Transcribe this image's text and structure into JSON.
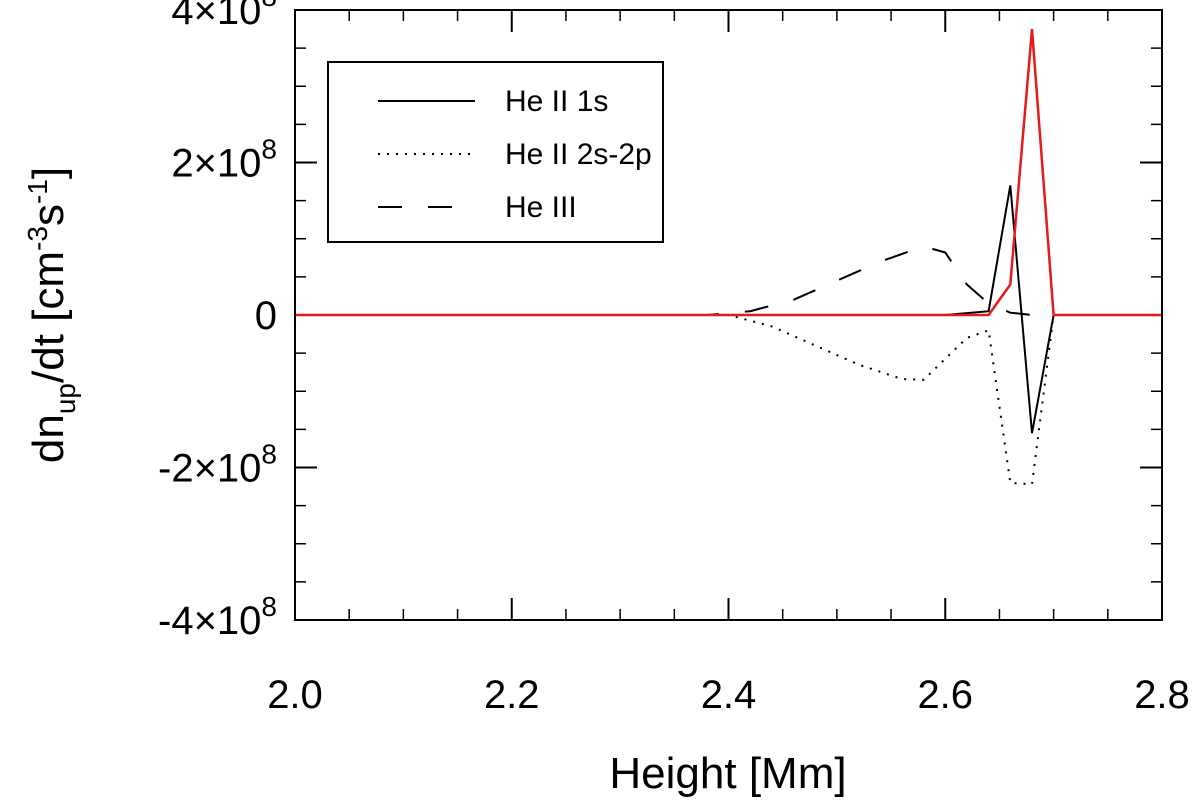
{
  "chart_data": {
    "type": "line",
    "title": "",
    "xlabel": "Height [Mm]",
    "ylabel": {
      "main": "dn",
      "sub": "up",
      "mid": "/dt [cm",
      "sup1": "-3",
      "mid2": "s",
      "sup2": "-1",
      "end": "]"
    },
    "xlim": [
      2.0,
      2.8
    ],
    "ylim": [
      -400000000,
      400000000
    ],
    "x_ticks": [
      {
        "value": 2.0,
        "label": "2.0"
      },
      {
        "value": 2.2,
        "label": "2.2"
      },
      {
        "value": 2.4,
        "label": "2.4"
      },
      {
        "value": 2.6,
        "label": "2.6"
      },
      {
        "value": 2.8,
        "label": "2.8"
      }
    ],
    "y_ticks": [
      {
        "value": 400000000,
        "base": "4×10",
        "exp": "8"
      },
      {
        "value": 200000000,
        "base": "2×10",
        "exp": "8"
      },
      {
        "value": 0,
        "base": "0",
        "exp": ""
      },
      {
        "value": -200000000,
        "base": "-2×10",
        "exp": "8"
      },
      {
        "value": -400000000,
        "base": "-4×10",
        "exp": "8"
      }
    ],
    "x_minor_step": 0.05,
    "y_minor_step": 50000000,
    "legend_position": "top-left",
    "series": [
      {
        "name": "He II 1s",
        "style": "solid",
        "color": "#000000",
        "in_legend": true,
        "x": [
          2.0,
          2.36,
          2.4,
          2.5,
          2.6,
          2.64,
          2.66,
          2.68,
          2.7,
          2.72,
          2.8
        ],
        "y": [
          0,
          0,
          0,
          0,
          0,
          5000000,
          170000000,
          -155000000,
          0,
          0,
          0
        ]
      },
      {
        "name": "He II 2s-2p",
        "style": "dotted",
        "color": "#000000",
        "in_legend": true,
        "x": [
          2.0,
          2.38,
          2.4,
          2.44,
          2.48,
          2.52,
          2.56,
          2.58,
          2.62,
          2.64,
          2.66,
          2.68,
          2.7,
          2.72,
          2.8
        ],
        "y": [
          0,
          0,
          0,
          -15000000,
          -40000000,
          -65000000,
          -84000000,
          -85000000,
          -30000000,
          -20000000,
          -220000000,
          -222000000,
          0,
          0,
          0
        ]
      },
      {
        "name": "He III",
        "style": "dashed",
        "color": "#000000",
        "in_legend": true,
        "x": [
          2.0,
          2.38,
          2.42,
          2.46,
          2.5,
          2.54,
          2.58,
          2.6,
          2.62,
          2.64,
          2.66,
          2.68,
          2.7,
          2.72,
          2.8
        ],
        "y": [
          0,
          0,
          5000000,
          20000000,
          45000000,
          70000000,
          90000000,
          82000000,
          40000000,
          15000000,
          3000000,
          0,
          0,
          0,
          0
        ]
      },
      {
        "name": "",
        "style": "solid",
        "color": "#e8191a",
        "in_legend": false,
        "x": [
          2.0,
          2.64,
          2.66,
          2.68,
          2.7,
          2.72,
          2.8
        ],
        "y": [
          0,
          0,
          40000000,
          375000000,
          0,
          0,
          0
        ]
      }
    ]
  }
}
